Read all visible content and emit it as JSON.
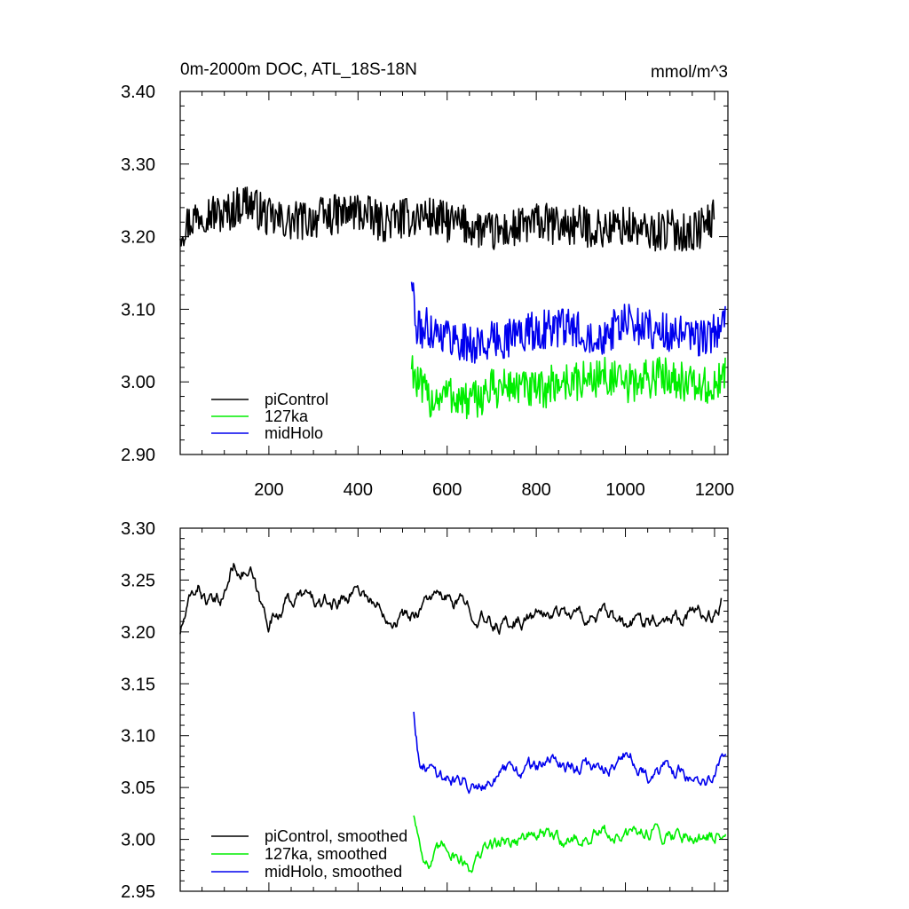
{
  "figure": {
    "title_left": "0m-2000m DOC, ATL_18S-18N",
    "title_right": "mmol/m^3"
  },
  "chart_data": [
    {
      "type": "line",
      "panel": "top",
      "xlim": [
        1,
        1230
      ],
      "ylim": [
        2.9,
        3.4
      ],
      "x_ticks": [
        200,
        400,
        600,
        800,
        1000,
        1200
      ],
      "x_tick_labels": [
        "200",
        "400",
        "600",
        "800",
        "1000",
        "1200"
      ],
      "y_ticks": [
        2.9,
        3.0,
        3.1,
        3.2,
        3.3,
        3.4
      ],
      "y_tick_labels": [
        "2.90",
        "3.00",
        "3.10",
        "3.20",
        "3.30",
        "3.40"
      ],
      "grid": false,
      "legend_position": "bottom-left",
      "series": [
        {
          "name": "piControl",
          "color": "#000000",
          "x": [
            1,
            50,
            100,
            150,
            200,
            250,
            300,
            350,
            400,
            450,
            500,
            550,
            600,
            650,
            700,
            750,
            800,
            850,
            900,
            950,
            1000,
            1050,
            1100,
            1150,
            1200
          ],
          "values": [
            3.21,
            3.235,
            3.23,
            3.25,
            3.225,
            3.22,
            3.225,
            3.23,
            3.235,
            3.22,
            3.225,
            3.23,
            3.22,
            3.215,
            3.205,
            3.21,
            3.22,
            3.215,
            3.215,
            3.21,
            3.215,
            3.205,
            3.21,
            3.205,
            3.225
          ]
        },
        {
          "name": "127ka",
          "color": "#00ee00",
          "x": [
            520,
            530,
            560,
            600,
            650,
            700,
            750,
            800,
            850,
            900,
            950,
            1000,
            1050,
            1100,
            1150,
            1200,
            1225
          ],
          "values": [
            3.03,
            3.0,
            2.975,
            2.985,
            2.97,
            2.99,
            2.995,
            2.985,
            3.0,
            3.0,
            3.01,
            2.995,
            3.005,
            3.01,
            2.995,
            2.99,
            3.01
          ]
        },
        {
          "name": "midHolo",
          "color": "#0000ee",
          "x": [
            520,
            530,
            560,
            600,
            650,
            700,
            750,
            800,
            850,
            900,
            950,
            1000,
            1050,
            1100,
            1150,
            1200,
            1225
          ],
          "values": [
            3.15,
            3.07,
            3.075,
            3.065,
            3.05,
            3.055,
            3.065,
            3.07,
            3.075,
            3.07,
            3.065,
            3.08,
            3.075,
            3.065,
            3.06,
            3.065,
            3.09
          ]
        }
      ]
    },
    {
      "type": "line",
      "panel": "bottom",
      "xlim": [
        1,
        1230
      ],
      "ylim": [
        2.95,
        3.3
      ],
      "x_ticks": [
        200,
        400,
        600,
        800,
        1000,
        1200
      ],
      "y_ticks": [
        2.95,
        3.0,
        3.05,
        3.1,
        3.15,
        3.2,
        3.25,
        3.3
      ],
      "y_tick_labels": [
        "2.95",
        "3.00",
        "3.05",
        "3.10",
        "3.15",
        "3.20",
        "3.25",
        "3.30"
      ],
      "grid": false,
      "legend_position": "bottom-left",
      "series": [
        {
          "name": "piControl, smoothed",
          "color": "#000000",
          "x": [
            1,
            20,
            40,
            60,
            80,
            100,
            120,
            140,
            160,
            180,
            200,
            240,
            280,
            320,
            360,
            400,
            440,
            480,
            520,
            560,
            600,
            650,
            700,
            750,
            800,
            850,
            900,
            950,
            1000,
            1050,
            1100,
            1150,
            1200,
            1215
          ],
          "values": [
            3.2,
            3.225,
            3.245,
            3.23,
            3.225,
            3.235,
            3.265,
            3.26,
            3.255,
            3.225,
            3.21,
            3.23,
            3.235,
            3.225,
            3.23,
            3.245,
            3.225,
            3.215,
            3.215,
            3.235,
            3.23,
            3.225,
            3.205,
            3.21,
            3.215,
            3.22,
            3.215,
            3.215,
            3.205,
            3.215,
            3.215,
            3.22,
            3.215,
            3.23
          ]
        },
        {
          "name": "127ka, smoothed",
          "color": "#00ee00",
          "x": [
            525,
            540,
            560,
            600,
            650,
            700,
            750,
            800,
            850,
            900,
            950,
            1000,
            1050,
            1100,
            1150,
            1200,
            1225
          ],
          "values": [
            3.025,
            2.995,
            2.975,
            2.995,
            2.975,
            2.995,
            3.0,
            3.005,
            3.0,
            3.0,
            3.005,
            3.0,
            3.01,
            3.005,
            3.005,
            3.0,
            3.015
          ]
        },
        {
          "name": "midHolo, smoothed",
          "color": "#0000ee",
          "x": [
            525,
            540,
            560,
            600,
            650,
            700,
            750,
            800,
            850,
            900,
            950,
            1000,
            1050,
            1100,
            1150,
            1200,
            1225
          ],
          "values": [
            3.125,
            3.065,
            3.07,
            3.06,
            3.055,
            3.06,
            3.065,
            3.07,
            3.075,
            3.07,
            3.07,
            3.08,
            3.065,
            3.065,
            3.06,
            3.055,
            3.09
          ]
        }
      ]
    }
  ]
}
